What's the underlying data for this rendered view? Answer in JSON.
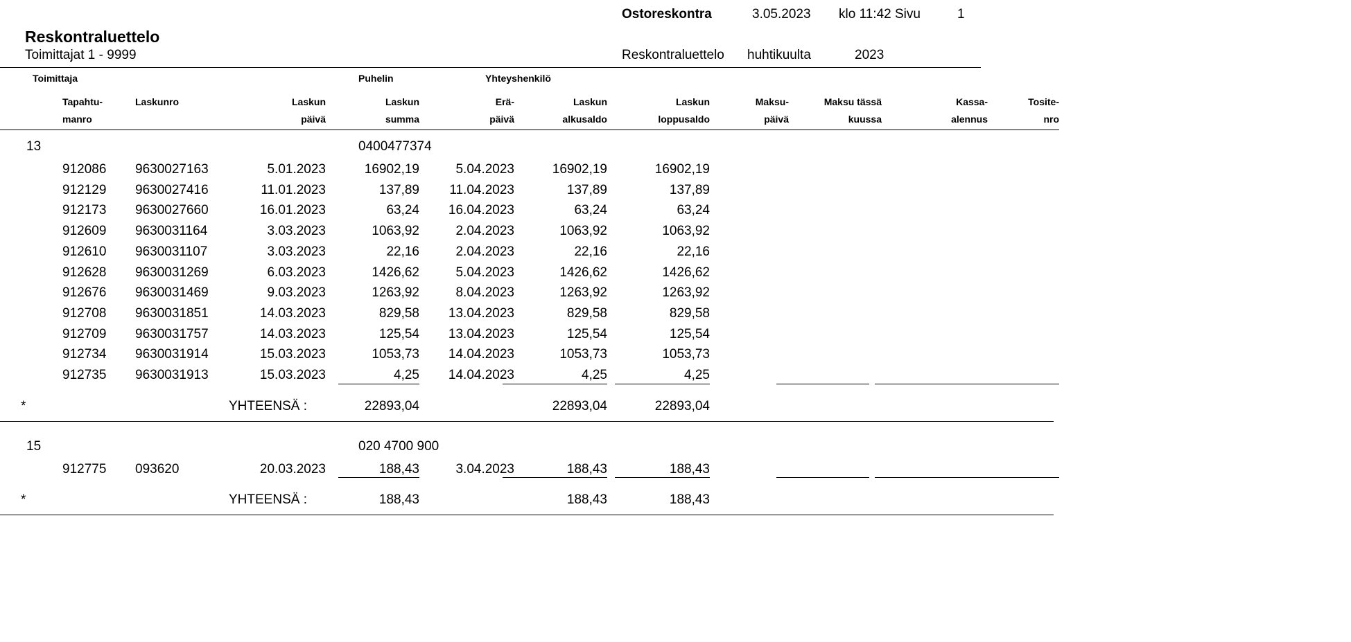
{
  "header": {
    "module": "Ostoreskontra",
    "date": "3.05.2023",
    "time_page": "klo 11:42 Sivu",
    "page": "1",
    "title": "Reskontraluettelo",
    "range": "Toimittajat 1 - 9999",
    "report_name": "Reskontraluettelo",
    "period": "huhtikuulta",
    "year": "2023"
  },
  "columns": {
    "supplier": "Toimittaja",
    "phone": "Puhelin",
    "contact": "Yhteyshenkilö",
    "c1": [
      "Tapahtu-",
      "manro"
    ],
    "c2": [
      "Laskunro",
      ""
    ],
    "c3": [
      "Laskun",
      "päivä"
    ],
    "c4": [
      "Laskun",
      "summa"
    ],
    "c5": [
      "Erä-",
      "päivä"
    ],
    "c6": [
      "Laskun",
      "alkusaldo"
    ],
    "c7": [
      "Laskun",
      "loppusaldo"
    ],
    "c8": [
      "Maksu-",
      "päivä"
    ],
    "c9": [
      "Maksu tässä",
      "kuussa"
    ],
    "c10": [
      "Kassa-",
      "alennus"
    ],
    "c11": [
      "Tosite-",
      "nro"
    ]
  },
  "groups": [
    {
      "supplier": "13",
      "phone": "0400477374",
      "rows": [
        [
          "912086",
          "9630027163",
          "5.01.2023",
          "16902,19",
          "5.04.2023",
          "16902,19",
          "16902,19"
        ],
        [
          "912129",
          "9630027416",
          "11.01.2023",
          "137,89",
          "11.04.2023",
          "137,89",
          "137,89"
        ],
        [
          "912173",
          "9630027660",
          "16.01.2023",
          "63,24",
          "16.04.2023",
          "63,24",
          "63,24"
        ],
        [
          "912609",
          "9630031164",
          "3.03.2023",
          "1063,92",
          "2.04.2023",
          "1063,92",
          "1063,92"
        ],
        [
          "912610",
          "9630031107",
          "3.03.2023",
          "22,16",
          "2.04.2023",
          "22,16",
          "22,16"
        ],
        [
          "912628",
          "9630031269",
          "6.03.2023",
          "1426,62",
          "5.04.2023",
          "1426,62",
          "1426,62"
        ],
        [
          "912676",
          "9630031469",
          "9.03.2023",
          "1263,92",
          "8.04.2023",
          "1263,92",
          "1263,92"
        ],
        [
          "912708",
          "9630031851",
          "14.03.2023",
          "829,58",
          "13.04.2023",
          "829,58",
          "829,58"
        ],
        [
          "912709",
          "9630031757",
          "14.03.2023",
          "125,54",
          "13.04.2023",
          "125,54",
          "125,54"
        ],
        [
          "912734",
          "9630031914",
          "15.03.2023",
          "1053,73",
          "14.04.2023",
          "1053,73",
          "1053,73"
        ],
        [
          "912735",
          "9630031913",
          "15.03.2023",
          "4,25",
          "14.04.2023",
          "4,25",
          "4,25"
        ]
      ],
      "total": {
        "marker": "*",
        "label": "YHTEENSÄ :",
        "sum": "22893,04",
        "start": "22893,04",
        "end": "22893,04"
      }
    },
    {
      "supplier": "15",
      "phone": "020 4700 900",
      "rows": [
        [
          "912775",
          "093620",
          "20.03.2023",
          "188,43",
          "3.04.2023",
          "188,43",
          "188,43"
        ]
      ],
      "total": {
        "marker": "*",
        "label": "YHTEENSÄ :",
        "sum": "188,43",
        "start": "188,43",
        "end": "188,43"
      }
    }
  ]
}
